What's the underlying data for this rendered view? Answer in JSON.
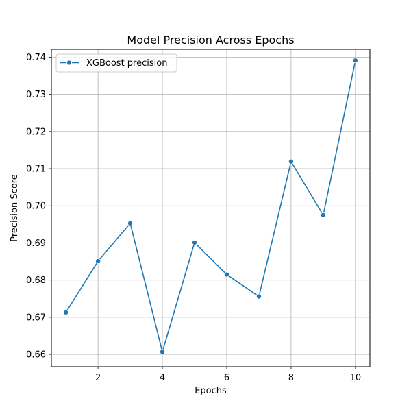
{
  "chart_data": {
    "type": "line",
    "title": "Model Precision Across Epochs",
    "xlabel": "Epochs",
    "ylabel": "Precision Score",
    "x": [
      1,
      2,
      3,
      4,
      5,
      6,
      7,
      8,
      9,
      10
    ],
    "series": [
      {
        "name": "XGBoost precision",
        "values": [
          0.6713,
          0.6851,
          0.6953,
          0.6607,
          0.6901,
          0.6815,
          0.6756,
          0.7119,
          0.6975,
          0.7391
        ],
        "color": "#1f77b4",
        "marker": "circle"
      }
    ],
    "xlim": [
      0.55,
      10.45
    ],
    "ylim": [
      0.6567,
      0.7421
    ],
    "x_ticks": [
      2,
      4,
      6,
      8,
      10
    ],
    "x_tick_labels": [
      "2",
      "4",
      "6",
      "8",
      "10"
    ],
    "y_ticks": [
      0.66,
      0.67,
      0.68,
      0.69,
      0.7,
      0.71,
      0.72,
      0.73,
      0.74
    ],
    "y_tick_labels": [
      "0.66",
      "0.67",
      "0.68",
      "0.69",
      "0.70",
      "0.71",
      "0.72",
      "0.73",
      "0.74"
    ],
    "grid": true,
    "legend_position": "upper-left",
    "grid_color": "#b0b0b0"
  }
}
